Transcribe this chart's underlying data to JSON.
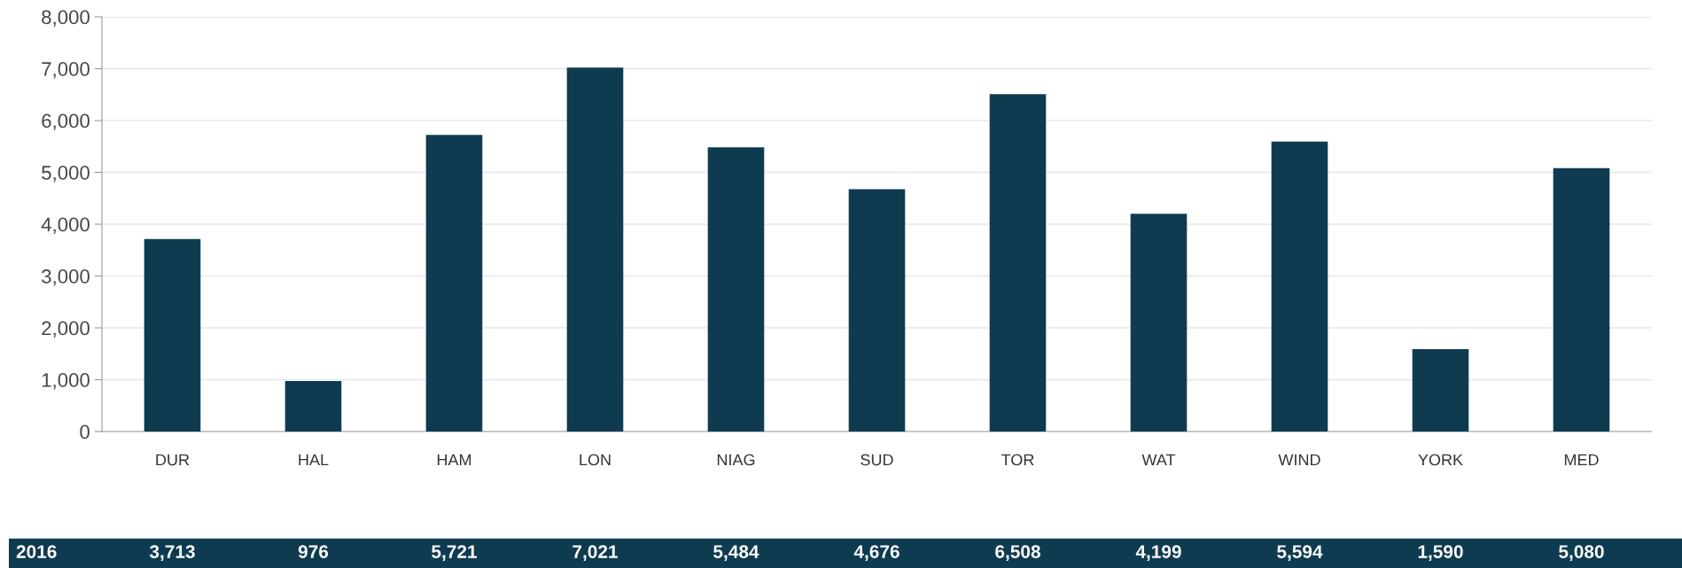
{
  "chart_data": {
    "type": "bar",
    "categories": [
      "DUR",
      "HAL",
      "HAM",
      "LON",
      "NIAG",
      "SUD",
      "TOR",
      "WAT",
      "WIND",
      "YORK",
      "MED"
    ],
    "series": [
      {
        "name": "2016",
        "color": "#0f3b50",
        "values": [
          3713,
          976,
          5721,
          7021,
          5484,
          4676,
          6508,
          4199,
          5594,
          1590,
          5080
        ],
        "value_labels": [
          "3,713",
          "976",
          "5,721",
          "7,021",
          "5,484",
          "4,676",
          "6,508",
          "4,199",
          "5,594",
          "1,590",
          "5,080"
        ]
      }
    ],
    "ylim": [
      0,
      8000
    ],
    "yticks": [
      {
        "value": 0,
        "label": "0"
      },
      {
        "value": 1000,
        "label": "1,000"
      },
      {
        "value": 2000,
        "label": "2,000"
      },
      {
        "value": 3000,
        "label": "3,000"
      },
      {
        "value": 4000,
        "label": "4,000"
      },
      {
        "value": 5000,
        "label": "5,000"
      },
      {
        "value": 6000,
        "label": "6,000"
      },
      {
        "value": 7000,
        "label": "7,000"
      },
      {
        "value": 8000,
        "label": "8,000"
      }
    ],
    "grid": "y"
  }
}
